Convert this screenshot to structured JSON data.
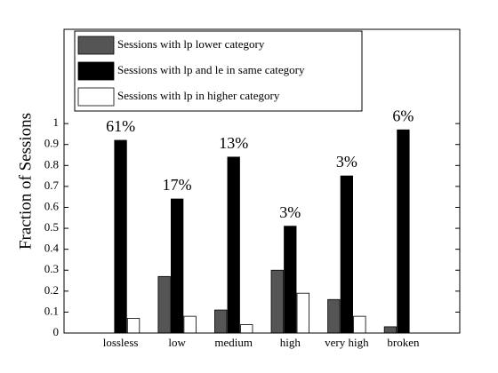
{
  "chart_data": {
    "type": "bar",
    "ylabel": "Fraction of Sessions",
    "categories": [
      "lossless",
      "low",
      "medium",
      "high",
      "very high",
      "broken"
    ],
    "series": [
      {
        "name": "Sessions with lp lower category",
        "color": "#555555",
        "values": [
          0,
          0.27,
          0.11,
          0.3,
          0.16,
          0.03
        ]
      },
      {
        "name": "Sessions with lp and le in same category",
        "color": "#000000",
        "values": [
          0.92,
          0.64,
          0.84,
          0.51,
          0.75,
          0.97
        ]
      },
      {
        "name": "Sessions with lp in higher category",
        "color": "#ffffff",
        "values": [
          0.07,
          0.08,
          0.04,
          0.19,
          0.08,
          0
        ]
      }
    ],
    "annotations": [
      "61%",
      "17%",
      "13%",
      "3%",
      "3%",
      "6%"
    ],
    "ylim": [
      0,
      1.45
    ],
    "yticks": [
      0,
      0.1,
      0.2,
      0.3,
      0.4,
      0.5,
      0.6,
      0.7,
      0.8,
      0.9,
      1
    ],
    "legend": "upper left"
  }
}
